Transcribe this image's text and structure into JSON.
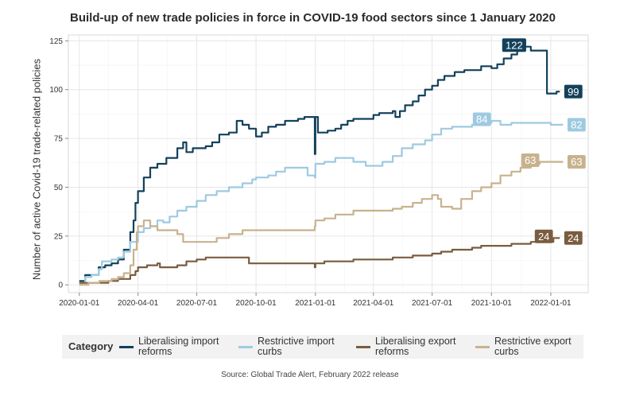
{
  "chart_data": {
    "type": "line",
    "title": "Build-up of new trade policies in force in COVID-19 food sectors since 1 January 2020",
    "xlabel": "",
    "ylabel": "Number of active Covid-19 trade-related policies",
    "x_ticks": [
      "2020-01-01",
      "2020-04-01",
      "2020-07-01",
      "2020-10-01",
      "2021-01-01",
      "2021-04-01",
      "2021-07-01",
      "2021-10-01",
      "2022-01-01"
    ],
    "y_ticks": [
      0,
      25,
      50,
      75,
      100,
      125
    ],
    "xlim": [
      "2019-12-15",
      "2022-02-28"
    ],
    "ylim": [
      -4,
      128
    ],
    "grid": true,
    "legend_position": "bottom",
    "legend_title": "Category",
    "series": [
      {
        "name": "Liberalising import reforms",
        "color": "#13415b",
        "points": [
          [
            "2020-01-01",
            2
          ],
          [
            "2020-01-10",
            5
          ],
          [
            "2020-01-20",
            5
          ],
          [
            "2020-01-31",
            9
          ],
          [
            "2020-02-10",
            10
          ],
          [
            "2020-02-20",
            11
          ],
          [
            "2020-03-01",
            13
          ],
          [
            "2020-03-10",
            18
          ],
          [
            "2020-03-20",
            27
          ],
          [
            "2020-03-25",
            33
          ],
          [
            "2020-03-28",
            42
          ],
          [
            "2020-04-01",
            48
          ],
          [
            "2020-04-10",
            55
          ],
          [
            "2020-04-20",
            60
          ],
          [
            "2020-05-01",
            62
          ],
          [
            "2020-05-15",
            65
          ],
          [
            "2020-06-01",
            70
          ],
          [
            "2020-06-10",
            73
          ],
          [
            "2020-06-15",
            68
          ],
          [
            "2020-06-25",
            70
          ],
          [
            "2020-07-01",
            70
          ],
          [
            "2020-07-15",
            71
          ],
          [
            "2020-07-25",
            73
          ],
          [
            "2020-08-05",
            77
          ],
          [
            "2020-08-20",
            78
          ],
          [
            "2020-09-01",
            84
          ],
          [
            "2020-09-10",
            82
          ],
          [
            "2020-09-20",
            80
          ],
          [
            "2020-10-01",
            76
          ],
          [
            "2020-10-10",
            78
          ],
          [
            "2020-10-20",
            81
          ],
          [
            "2020-11-01",
            82
          ],
          [
            "2020-11-15",
            84
          ],
          [
            "2020-11-25",
            84
          ],
          [
            "2020-12-05",
            85
          ],
          [
            "2020-12-15",
            86
          ],
          [
            "2020-12-25",
            86
          ],
          [
            "2020-12-31",
            67
          ],
          [
            "2021-01-01",
            86
          ],
          [
            "2021-01-05",
            78
          ],
          [
            "2021-01-20",
            79
          ],
          [
            "2021-02-01",
            80
          ],
          [
            "2021-02-10",
            82
          ],
          [
            "2021-02-20",
            84
          ],
          [
            "2021-03-01",
            85
          ],
          [
            "2021-03-15",
            85
          ],
          [
            "2021-04-01",
            87
          ],
          [
            "2021-04-10",
            88
          ],
          [
            "2021-04-25",
            88
          ],
          [
            "2021-05-01",
            89
          ],
          [
            "2021-05-05",
            86
          ],
          [
            "2021-05-12",
            89
          ],
          [
            "2021-05-20",
            92
          ],
          [
            "2021-06-01",
            94
          ],
          [
            "2021-06-10",
            97
          ],
          [
            "2021-06-20",
            100
          ],
          [
            "2021-07-01",
            102
          ],
          [
            "2021-07-10",
            105
          ],
          [
            "2021-07-20",
            107
          ],
          [
            "2021-08-05",
            109
          ],
          [
            "2021-08-20",
            110
          ],
          [
            "2021-09-01",
            110
          ],
          [
            "2021-09-15",
            112
          ],
          [
            "2021-10-01",
            111
          ],
          [
            "2021-10-10",
            113
          ],
          [
            "2021-10-20",
            116
          ],
          [
            "2021-11-01",
            118
          ],
          [
            "2021-11-10",
            120
          ],
          [
            "2021-11-20",
            122
          ],
          [
            "2021-12-01",
            120
          ],
          [
            "2021-12-10",
            120
          ],
          [
            "2021-12-20",
            120
          ],
          [
            "2021-12-26",
            98
          ],
          [
            "2022-01-10",
            99
          ],
          [
            "2022-01-15",
            99
          ]
        ],
        "end_label": "99",
        "peak_label": "122"
      },
      {
        "name": "Restrictive import curbs",
        "color": "#9ecae1",
        "points": [
          [
            "2020-01-01",
            1
          ],
          [
            "2020-01-10",
            4
          ],
          [
            "2020-01-20",
            5
          ],
          [
            "2020-01-31",
            8
          ],
          [
            "2020-02-05",
            12
          ],
          [
            "2020-02-20",
            13
          ],
          [
            "2020-03-01",
            14
          ],
          [
            "2020-03-10",
            17
          ],
          [
            "2020-03-20",
            22
          ],
          [
            "2020-04-01",
            27
          ],
          [
            "2020-04-10",
            29
          ],
          [
            "2020-04-20",
            30
          ],
          [
            "2020-05-01",
            33
          ],
          [
            "2020-05-10",
            32
          ],
          [
            "2020-05-20",
            35
          ],
          [
            "2020-06-01",
            38
          ],
          [
            "2020-06-15",
            40
          ],
          [
            "2020-07-01",
            43
          ],
          [
            "2020-07-15",
            46
          ],
          [
            "2020-08-01",
            48
          ],
          [
            "2020-08-20",
            50
          ],
          [
            "2020-09-10",
            52
          ],
          [
            "2020-09-25",
            54
          ],
          [
            "2020-10-01",
            55
          ],
          [
            "2020-10-20",
            56
          ],
          [
            "2020-11-01",
            58
          ],
          [
            "2020-11-15",
            60
          ],
          [
            "2020-12-05",
            60
          ],
          [
            "2020-12-20",
            56
          ],
          [
            "2020-12-31",
            55
          ],
          [
            "2021-01-01",
            62
          ],
          [
            "2021-01-15",
            63
          ],
          [
            "2021-02-01",
            65
          ],
          [
            "2021-03-01",
            63
          ],
          [
            "2021-03-20",
            61
          ],
          [
            "2021-04-01",
            61
          ],
          [
            "2021-04-15",
            63
          ],
          [
            "2021-05-01",
            66
          ],
          [
            "2021-05-15",
            70
          ],
          [
            "2021-06-01",
            72
          ],
          [
            "2021-06-20",
            74
          ],
          [
            "2021-07-01",
            77
          ],
          [
            "2021-07-15",
            80
          ],
          [
            "2021-08-01",
            81
          ],
          [
            "2021-09-01",
            82
          ],
          [
            "2021-09-20",
            83
          ],
          [
            "2021-10-01",
            84
          ],
          [
            "2021-10-15",
            82
          ],
          [
            "2021-11-01",
            83
          ],
          [
            "2021-12-01",
            83
          ],
          [
            "2022-01-01",
            82
          ],
          [
            "2022-01-20",
            82
          ]
        ],
        "end_label": "82",
        "peak_label": "84"
      },
      {
        "name": "Liberalising export reforms",
        "color": "#7a5c3f",
        "points": [
          [
            "2020-01-01",
            1
          ],
          [
            "2020-01-15",
            1
          ],
          [
            "2020-02-01",
            1
          ],
          [
            "2020-02-15",
            2
          ],
          [
            "2020-03-01",
            3
          ],
          [
            "2020-03-20",
            5
          ],
          [
            "2020-03-28",
            7
          ],
          [
            "2020-04-01",
            9
          ],
          [
            "2020-04-15",
            10
          ],
          [
            "2020-05-01",
            11
          ],
          [
            "2020-05-05",
            9
          ],
          [
            "2020-06-01",
            10
          ],
          [
            "2020-06-15",
            12
          ],
          [
            "2020-07-01",
            13
          ],
          [
            "2020-07-15",
            14
          ],
          [
            "2020-08-15",
            14
          ],
          [
            "2020-09-15",
            14
          ],
          [
            "2020-09-20",
            11
          ],
          [
            "2020-10-01",
            11
          ],
          [
            "2020-11-01",
            11
          ],
          [
            "2020-12-01",
            11
          ],
          [
            "2020-12-31",
            9
          ],
          [
            "2021-01-01",
            11
          ],
          [
            "2021-01-15",
            12
          ],
          [
            "2021-02-01",
            12
          ],
          [
            "2021-03-01",
            13
          ],
          [
            "2021-04-01",
            13
          ],
          [
            "2021-05-01",
            14
          ],
          [
            "2021-06-01",
            15
          ],
          [
            "2021-07-01",
            16
          ],
          [
            "2021-07-15",
            17
          ],
          [
            "2021-08-01",
            18
          ],
          [
            "2021-09-01",
            19
          ],
          [
            "2021-09-15",
            20
          ],
          [
            "2021-10-01",
            20
          ],
          [
            "2021-11-01",
            21
          ],
          [
            "2021-12-01",
            22
          ],
          [
            "2022-01-01",
            22
          ],
          [
            "2022-01-05",
            24
          ],
          [
            "2022-01-15",
            24
          ]
        ],
        "end_label": "24",
        "peak_label": "24"
      },
      {
        "name": "Restrictive export curbs",
        "color": "#c8b28e",
        "points": [
          [
            "2020-01-01",
            0
          ],
          [
            "2020-01-15",
            1
          ],
          [
            "2020-02-01",
            2
          ],
          [
            "2020-02-20",
            3
          ],
          [
            "2020-03-01",
            4
          ],
          [
            "2020-03-10",
            6
          ],
          [
            "2020-03-20",
            10
          ],
          [
            "2020-03-25",
            18
          ],
          [
            "2020-03-30",
            27
          ],
          [
            "2020-04-01",
            30
          ],
          [
            "2020-04-10",
            33
          ],
          [
            "2020-04-20",
            30
          ],
          [
            "2020-05-01",
            28
          ],
          [
            "2020-05-20",
            28
          ],
          [
            "2020-06-01",
            26
          ],
          [
            "2020-06-10",
            22
          ],
          [
            "2020-06-25",
            22
          ],
          [
            "2020-07-01",
            22
          ],
          [
            "2020-07-20",
            22
          ],
          [
            "2020-08-01",
            24
          ],
          [
            "2020-08-20",
            26
          ],
          [
            "2020-09-10",
            28
          ],
          [
            "2020-10-01",
            28
          ],
          [
            "2020-11-01",
            28
          ],
          [
            "2020-12-01",
            28
          ],
          [
            "2020-12-31",
            30
          ],
          [
            "2021-01-01",
            33
          ],
          [
            "2021-01-15",
            34
          ],
          [
            "2021-02-01",
            36
          ],
          [
            "2021-03-01",
            38
          ],
          [
            "2021-04-01",
            38
          ],
          [
            "2021-05-01",
            39
          ],
          [
            "2021-05-15",
            40
          ],
          [
            "2021-06-01",
            42
          ],
          [
            "2021-06-15",
            44
          ],
          [
            "2021-07-01",
            46
          ],
          [
            "2021-07-10",
            44
          ],
          [
            "2021-07-15",
            40
          ],
          [
            "2021-08-01",
            39
          ],
          [
            "2021-08-15",
            44
          ],
          [
            "2021-09-01",
            48
          ],
          [
            "2021-09-15",
            50
          ],
          [
            "2021-10-01",
            52
          ],
          [
            "2021-10-15",
            56
          ],
          [
            "2021-11-01",
            58
          ],
          [
            "2021-11-15",
            60
          ],
          [
            "2021-12-01",
            62
          ],
          [
            "2021-12-15",
            63
          ],
          [
            "2022-01-01",
            63
          ],
          [
            "2022-01-20",
            63
          ]
        ],
        "end_label": "63",
        "peak_label": "63"
      }
    ]
  },
  "legend_labels": [
    "Liberalising import reforms",
    "Restrictive import curbs",
    "Liberalising export reforms",
    "Restrictive export curbs"
  ],
  "source": "Source: Global Trade Alert, February 2022 release"
}
